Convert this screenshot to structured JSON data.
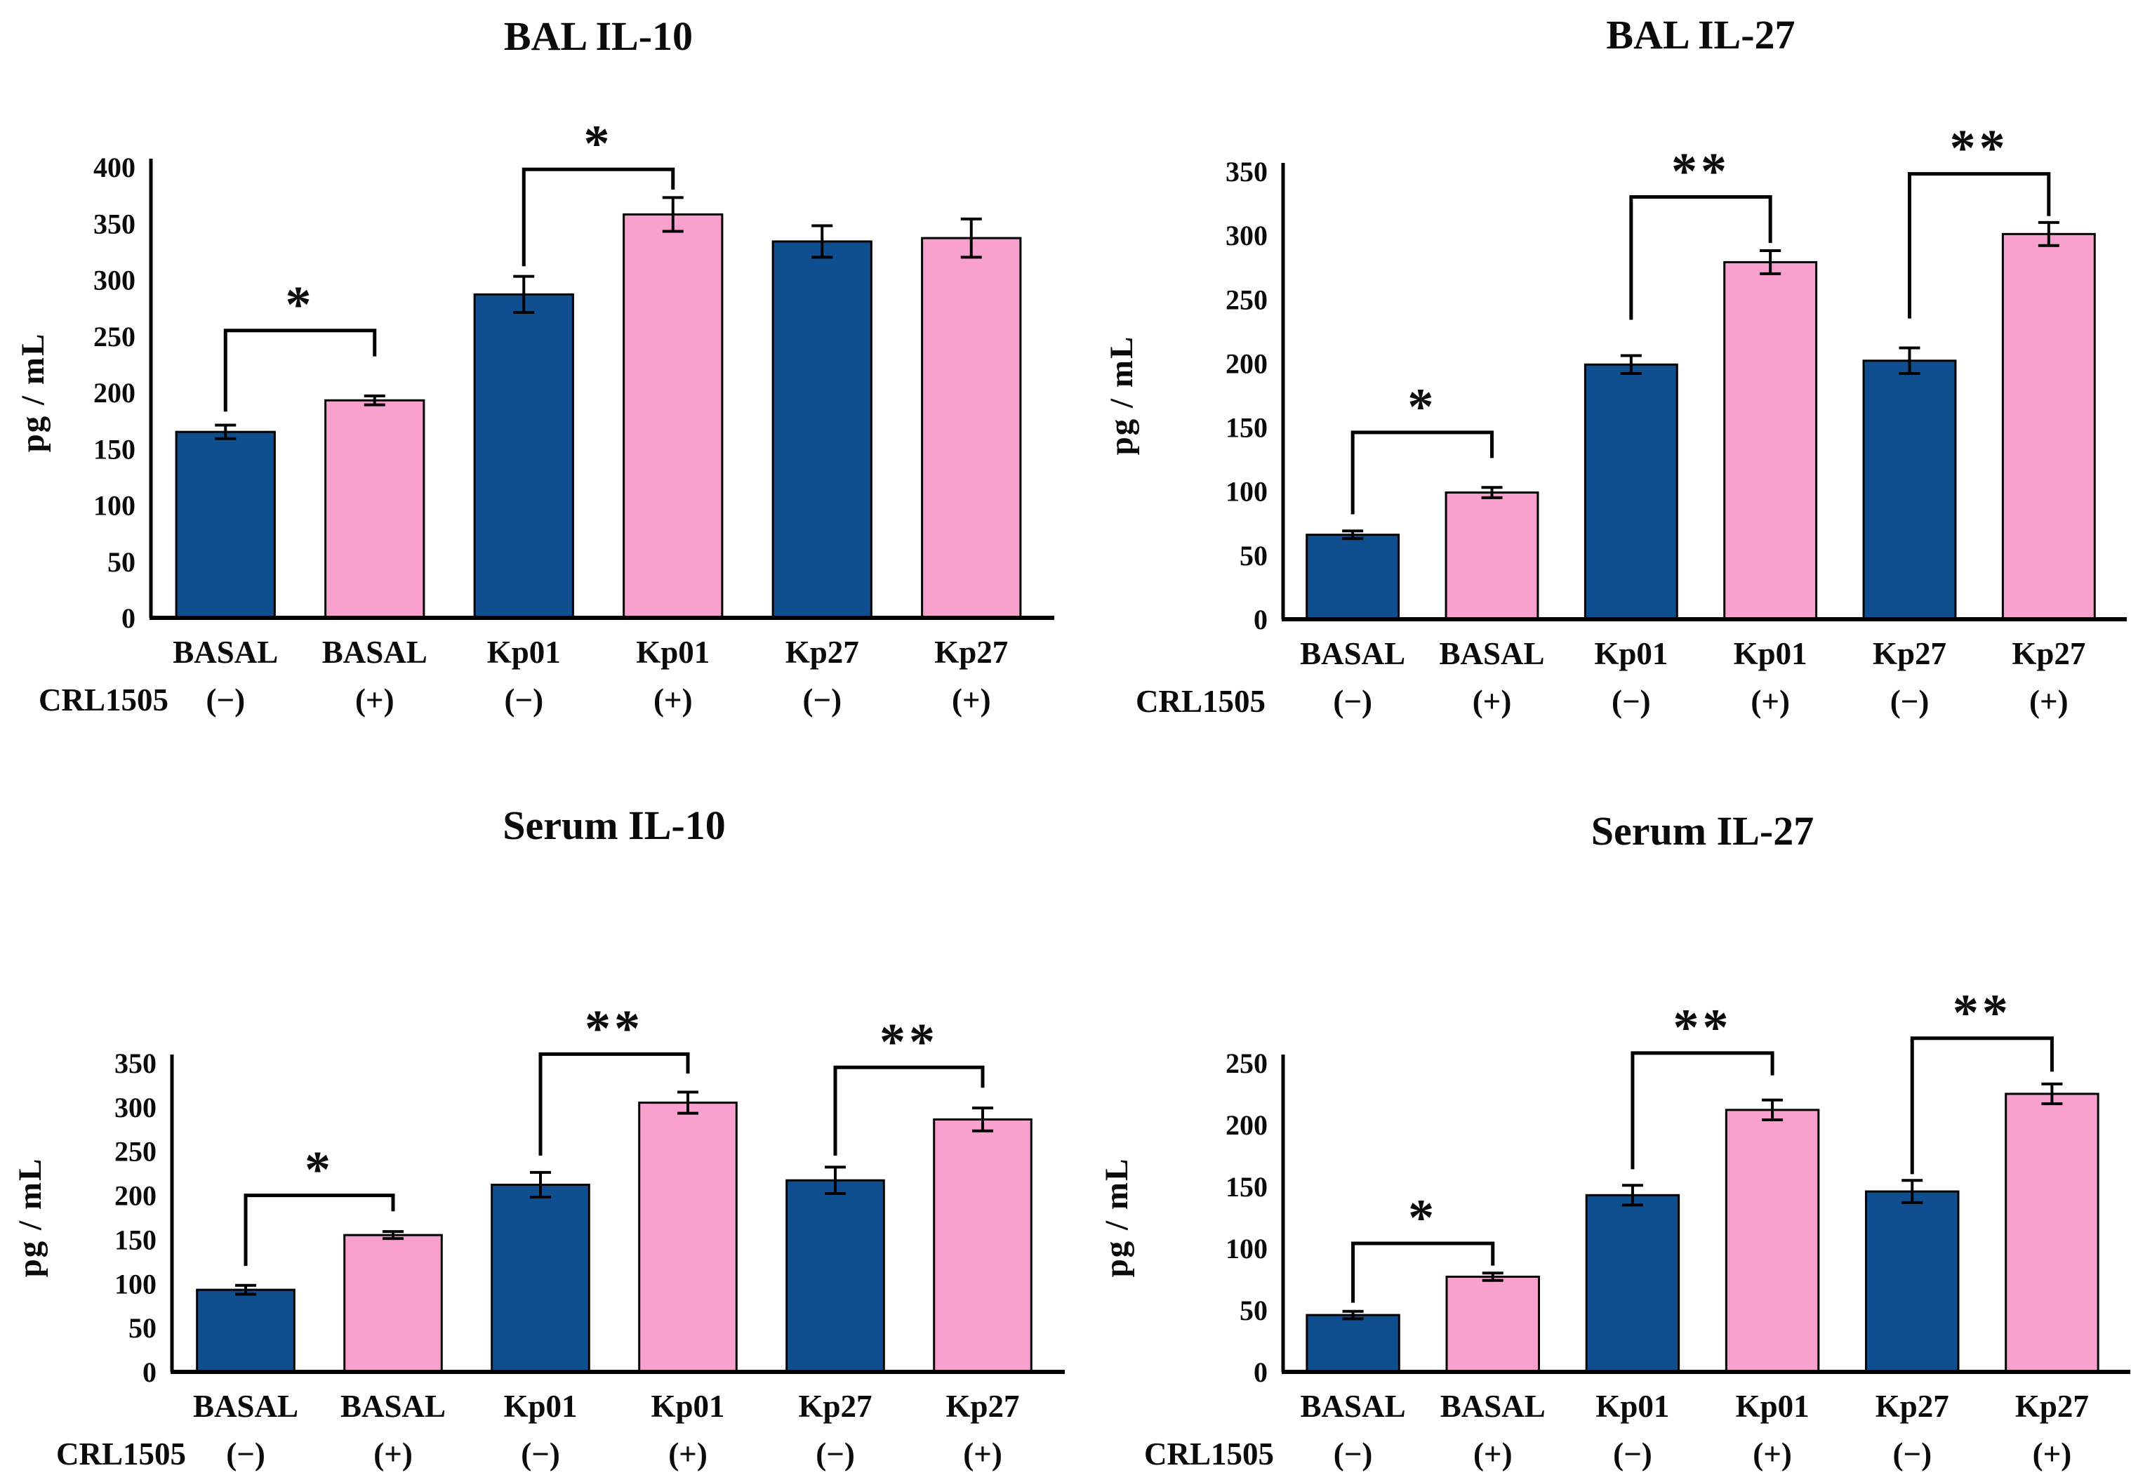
{
  "figure": {
    "background": "#ffffff",
    "bar_outline": "#000000",
    "axis_color": "#000000",
    "bar_color_minus": "#0F4E8F",
    "bar_color_plus": "#F9A1CE",
    "row_label": "CRL1505",
    "ylabel": "pg / mL",
    "legend": "none",
    "grid": false
  },
  "chart_data": [
    {
      "type": "bar",
      "title": "BAL IL-10",
      "ylabel": "pg / mL",
      "xlabel": "",
      "ylim": [
        0,
        400
      ],
      "ytick_step": 50,
      "categories": [
        "BASAL",
        "BASAL",
        "Kp01",
        "Kp01",
        "Kp27",
        "Kp27"
      ],
      "crl1505": [
        "(−)",
        "(+)",
        "(−)",
        "(+)",
        "(−)",
        "(+)"
      ],
      "bar_colors": [
        "#0F4E8F",
        "#F9A1CE",
        "#0F4E8F",
        "#F9A1CE",
        "#0F4E8F",
        "#F9A1CE"
      ],
      "values": [
        165,
        193,
        287,
        358,
        334,
        337
      ],
      "errors": [
        6,
        4,
        16,
        15,
        14,
        17
      ],
      "significance": [
        {
          "between": [
            0,
            1
          ],
          "label": "*",
          "y": 255,
          "left_leg_y": 183,
          "right_leg_y": 232
        },
        {
          "between": [
            2,
            3
          ],
          "label": "*",
          "y": 398,
          "left_leg_y": 312,
          "right_leg_y": 380
        }
      ]
    },
    {
      "type": "bar",
      "title": "BAL IL-27",
      "ylabel": "pg / mL",
      "xlabel": "",
      "ylim": [
        0,
        350
      ],
      "ytick_step": 50,
      "categories": [
        "BASAL",
        "BASAL",
        "Kp01",
        "Kp01",
        "Kp27",
        "Kp27"
      ],
      "crl1505": [
        "(−)",
        "(+)",
        "(−)",
        "(+)",
        "(−)",
        "(+)"
      ],
      "bar_colors": [
        "#0F4E8F",
        "#F9A1CE",
        "#0F4E8F",
        "#F9A1CE",
        "#0F4E8F",
        "#F9A1CE"
      ],
      "values": [
        66,
        99,
        199,
        279,
        202,
        301
      ],
      "errors": [
        3,
        4,
        7,
        9,
        10,
        9
      ],
      "significance": [
        {
          "between": [
            0,
            1
          ],
          "label": "*",
          "y": 146,
          "left_leg_y": 82,
          "right_leg_y": 126
        },
        {
          "between": [
            2,
            3
          ],
          "label": "**",
          "y": 330,
          "left_leg_y": 234,
          "right_leg_y": 294
        },
        {
          "between": [
            4,
            5
          ],
          "label": "**",
          "y": 348,
          "left_leg_y": 235,
          "right_leg_y": 315
        }
      ]
    },
    {
      "type": "bar",
      "title": "Serum IL-10",
      "ylabel": "pg / mL",
      "xlabel": "",
      "ylim": [
        0,
        350
      ],
      "ytick_step": 50,
      "categories": [
        "BASAL",
        "BASAL",
        "Kp01",
        "Kp01",
        "Kp27",
        "Kp27"
      ],
      "crl1505": [
        "(−)",
        "(+)",
        "(−)",
        "(+)",
        "(−)",
        "(+)"
      ],
      "bar_colors": [
        "#0F4E8F",
        "#F9A1CE",
        "#0F4E8F",
        "#F9A1CE",
        "#0F4E8F",
        "#F9A1CE"
      ],
      "values": [
        93,
        155,
        212,
        305,
        217,
        286
      ],
      "errors": [
        5,
        4,
        14,
        12,
        15,
        13
      ],
      "significance": [
        {
          "between": [
            0,
            1
          ],
          "label": "*",
          "y": 200,
          "left_leg_y": 120,
          "right_leg_y": 182
        },
        {
          "between": [
            2,
            3
          ],
          "label": "**",
          "y": 360,
          "left_leg_y": 245,
          "right_leg_y": 338
        },
        {
          "between": [
            4,
            5
          ],
          "label": "**",
          "y": 345,
          "left_leg_y": 245,
          "right_leg_y": 322
        }
      ]
    },
    {
      "type": "bar",
      "title": "Serum IL-27",
      "ylabel": "pg / mL",
      "xlabel": "",
      "ylim": [
        0,
        250
      ],
      "ytick_step": 50,
      "categories": [
        "BASAL",
        "BASAL",
        "Kp01",
        "Kp01",
        "Kp27",
        "Kp27"
      ],
      "crl1505": [
        "(−)",
        "(+)",
        "(−)",
        "(+)",
        "(−)",
        "(+)"
      ],
      "bar_colors": [
        "#0F4E8F",
        "#F9A1CE",
        "#0F4E8F",
        "#F9A1CE",
        "#0F4E8F",
        "#F9A1CE"
      ],
      "values": [
        46,
        77,
        143,
        212,
        146,
        225
      ],
      "errors": [
        3,
        3,
        8,
        8,
        9,
        8
      ],
      "significance": [
        {
          "between": [
            0,
            1
          ],
          "label": "*",
          "y": 104,
          "left_leg_y": 56,
          "right_leg_y": 86
        },
        {
          "between": [
            2,
            3
          ],
          "label": "**",
          "y": 258,
          "left_leg_y": 164,
          "right_leg_y": 240
        },
        {
          "between": [
            4,
            5
          ],
          "label": "**",
          "y": 270,
          "left_leg_y": 160,
          "right_leg_y": 243
        }
      ]
    }
  ]
}
